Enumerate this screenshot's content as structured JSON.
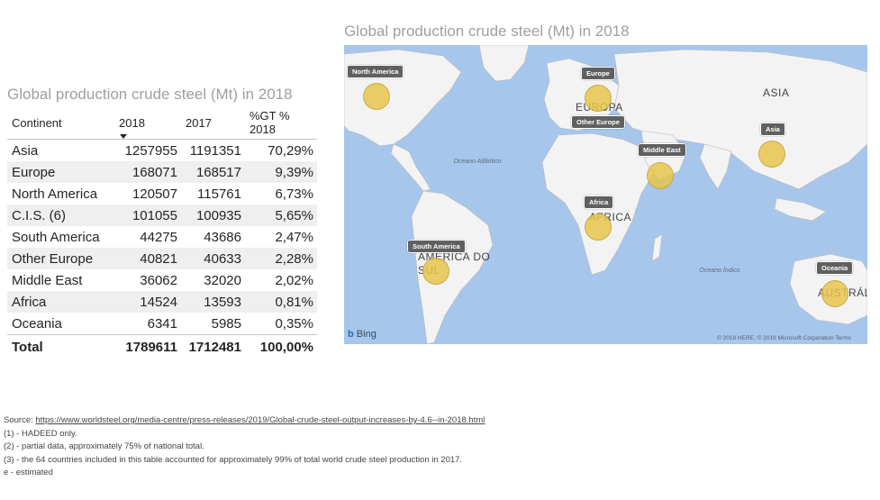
{
  "table": {
    "title": "Global production crude steel (Mt) in 2018",
    "columns": [
      "Continent",
      "2018",
      "2017",
      "%GT % 2018"
    ],
    "rows": [
      {
        "continent": "Asia",
        "y2018": "1257955",
        "y2017": "1191351",
        "pct": "70,29%"
      },
      {
        "continent": "Europe",
        "y2018": "168071",
        "y2017": "168517",
        "pct": "9,39%"
      },
      {
        "continent": "North America",
        "y2018": "120507",
        "y2017": "115761",
        "pct": "6,73%"
      },
      {
        "continent": "C.I.S. (6)",
        "y2018": "101055",
        "y2017": "100935",
        "pct": "5,65%"
      },
      {
        "continent": "South America",
        "y2018": "44275",
        "y2017": "43686",
        "pct": "2,47%"
      },
      {
        "continent": "Other Europe",
        "y2018": "40821",
        "y2017": "40633",
        "pct": "2,28%"
      },
      {
        "continent": "Middle East",
        "y2018": "36062",
        "y2017": "32020",
        "pct": "2,02%"
      },
      {
        "continent": "Africa",
        "y2018": "14524",
        "y2017": "13593",
        "pct": "0,81%"
      },
      {
        "continent": "Oceania",
        "y2018": "6341",
        "y2017": "5985",
        "pct": "0,35%"
      }
    ],
    "total": {
      "label": "Total",
      "y2018": "1789611",
      "y2017": "1712481",
      "pct": "100,00%"
    }
  },
  "map": {
    "title": "Global production crude steel (Mt) in 2018",
    "bubble_color": "#e8c44a",
    "ocean_color": "#a6c6ec",
    "land_color": "#f3f3f3",
    "tags": {
      "north_america": "North America",
      "europe": "Europe",
      "other_europe": "Other Europe",
      "middle_east": "Middle East",
      "asia": "Asia",
      "africa": "Africa",
      "south_america": "South America",
      "oceania": "Oceania"
    },
    "labels": {
      "asia": "ASIA",
      "europa": "EUROPA",
      "africa": "AFRICA",
      "america_do_sul": "AMÉRICA DO SUL",
      "australia": "AUSTRÁL",
      "oceano_atlantico": "Oceano Atlântico",
      "oceano_indico": "Oceano Índico"
    },
    "bing": "Bing",
    "copyright": "© 2018 HERE, © 2019 Microsoft Corporation  Terms"
  },
  "footnotes": {
    "source_label": "Source: ",
    "source_url": "https://www.worldsteel.org/media-centre/press-releases/2019/Global-crude-steel-output-increases-by-4.6--in-2018.html",
    "note1": "(1) - HADEED only.",
    "note2": "(2) - partial data, approximately 75% of national total.",
    "note3": "(3) - the 64 countries included in this table accounted for approximately 99% of total world crude steel production in 2017.",
    "note4": "e - estimated"
  }
}
